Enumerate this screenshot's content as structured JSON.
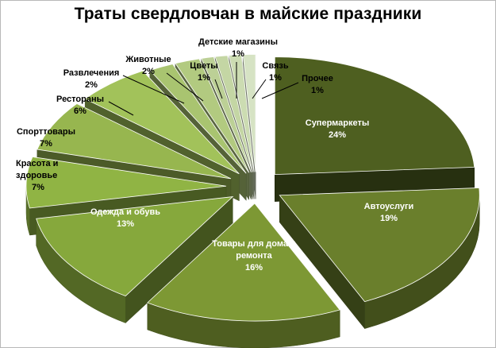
{
  "chart_data": {
    "type": "pie",
    "title": "Траты свердловчан в майские праздники",
    "slices": [
      {
        "label": "Супермаркеты",
        "value": 24,
        "value_label": "24%",
        "color": "#4e5f20"
      },
      {
        "label": "Автоуслуги",
        "value": 19,
        "value_label": "19%",
        "color": "#6a7f2c"
      },
      {
        "label": "Товары  для дома и ремонта",
        "value": 16,
        "value_label": "16%",
        "color": "#7d9834"
      },
      {
        "label": "Одежда и обувь",
        "value": 13,
        "value_label": "13%",
        "color": "#86a83c"
      },
      {
        "label": "Красота  и здоровье",
        "value": 7,
        "value_label": "7%",
        "color": "#90b444"
      },
      {
        "label": "Спорттовары",
        "value": 7,
        "value_label": "7%",
        "color": "#97b64f"
      },
      {
        "label": "Рестораны",
        "value": 6,
        "value_label": "6%",
        "color": "#a2c25a"
      },
      {
        "label": "Развлечения",
        "value": 2,
        "value_label": "2%",
        "color": "#a9c470"
      },
      {
        "label": "Животные",
        "value": 2,
        "value_label": "2%",
        "color": "#b2ca80"
      },
      {
        "label": "Цветы",
        "value": 1,
        "value_label": "1%",
        "color": "#bcd096"
      },
      {
        "label": "Детские магазины",
        "value": 1,
        "value_label": "1%",
        "color": "#c4d6a4"
      },
      {
        "label": "Связь",
        "value": 1,
        "value_label": "1%",
        "color": "#ccdcb2"
      },
      {
        "label": "Прочее",
        "value": 1,
        "value_label": "1%",
        "color": "#d6e3c4"
      }
    ]
  }
}
